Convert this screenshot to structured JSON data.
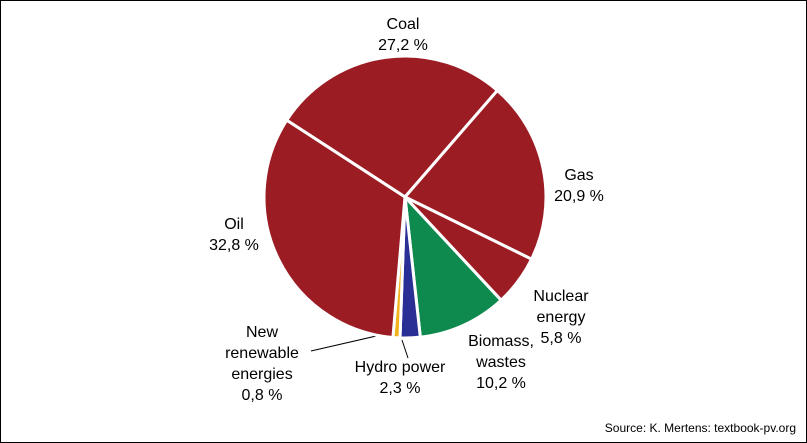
{
  "chart_data": {
    "type": "pie",
    "title": "",
    "slices": [
      {
        "name": "Coal",
        "value": 27.2,
        "value_label": "27,2 %",
        "color": "#9b1c23"
      },
      {
        "name": "Gas",
        "value": 20.9,
        "value_label": "20,9 %",
        "color": "#9b1c23"
      },
      {
        "name": "Nuclear\nenergy",
        "value": 5.8,
        "value_label": "5,8 %",
        "color": "#9b1c23"
      },
      {
        "name": "Biomass,\nwastes",
        "value": 10.2,
        "value_label": "10,2 %",
        "color": "#0e8a4f"
      },
      {
        "name": "Hydro power",
        "value": 2.3,
        "value_label": "2,3 %",
        "color": "#2a2f96"
      },
      {
        "name": "New\nrenewable\nenergies",
        "value": 0.8,
        "value_label": "0,8 %",
        "color": "#f2b21c"
      },
      {
        "name": "Oil",
        "value": 32.8,
        "value_label": "32,8 %",
        "color": "#9b1c23"
      }
    ],
    "slice_separator_color": "#ffffff",
    "source": "Source: K. Mertens: textbook-pv.org"
  }
}
